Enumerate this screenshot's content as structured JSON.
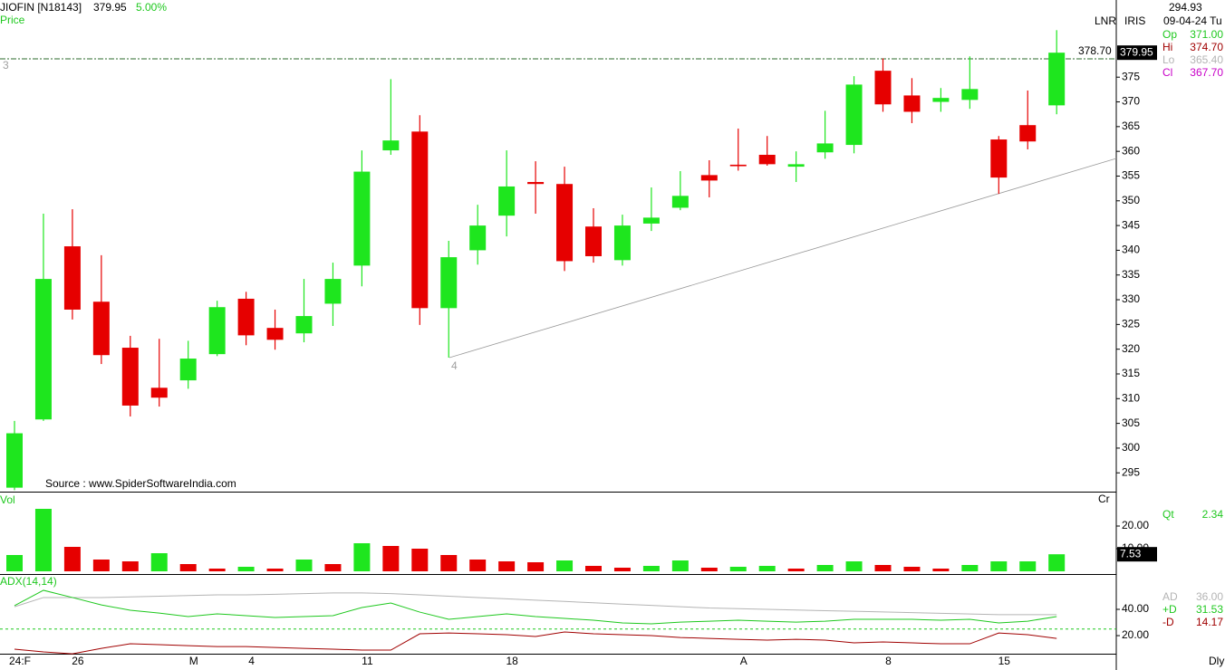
{
  "header": {
    "symbol": "JIOFIN [N18143]",
    "last": "379.95",
    "change": "5.00%",
    "panel_label": "Price",
    "cursor_value": "294.93",
    "cursor_date": "09-04-24 Tu",
    "tag1": "LNR",
    "tag2": "IRIS",
    "source": "Source : www.SpiderSoftwareIndia.com",
    "period": "Dly",
    "ohlc": [
      {
        "label": "Op",
        "value": "371.00",
        "color": "#1ec81e"
      },
      {
        "label": "Hi",
        "value": "374.70",
        "color": "#a00000"
      },
      {
        "label": "Lo",
        "value": "365.40",
        "color": "#b4b4b4"
      },
      {
        "label": "Cl",
        "value": "367.70",
        "color": "#c800c8"
      }
    ]
  },
  "chart_data": [
    {
      "type": "candlestick",
      "up_color": "#1ee61e",
      "down_color": "#e60000",
      "categories": [
        "24:F",
        null,
        "26",
        null,
        null,
        null,
        "M",
        null,
        "4",
        null,
        null,
        null,
        "11",
        null,
        null,
        null,
        null,
        "18",
        null,
        null,
        null,
        null,
        null,
        null,
        null,
        "A",
        null,
        null,
        null,
        null,
        "8",
        null,
        null,
        null,
        "15",
        null,
        null
      ],
      "open": [
        292,
        305.8,
        340.8,
        329.6,
        320.3,
        312.2,
        313.7,
        319,
        330.2,
        324.3,
        323.2,
        329.2,
        336.9,
        360.2,
        364,
        328.3,
        340,
        347,
        353.8,
        353.4,
        344.8,
        338,
        345.4,
        348.6,
        355.2,
        357.3,
        359.3,
        356.9,
        359.8,
        361.3,
        376.3,
        371.3,
        370,
        370.4,
        362.4,
        365.3,
        369.3
      ],
      "high": [
        305.5,
        347.4,
        348.3,
        339,
        322.7,
        322.1,
        321.7,
        329.8,
        331.6,
        328,
        334.2,
        337.5,
        360.2,
        374.6,
        367.3,
        341.9,
        349.2,
        360.2,
        358,
        356.9,
        348.5,
        347.2,
        352.7,
        356,
        358.2,
        364.6,
        363.1,
        360,
        368.2,
        375.2,
        378.8,
        374.8,
        372.8,
        379.2,
        363.1,
        372.3,
        384.5
      ],
      "low": [
        291.5,
        305.5,
        326,
        317,
        306.4,
        308.4,
        312,
        318.6,
        320.8,
        319.9,
        321.4,
        324.7,
        332.7,
        359.3,
        324.9,
        318.3,
        337.1,
        342.8,
        347.4,
        335.8,
        337.5,
        336.9,
        343.9,
        348.1,
        350.7,
        356.1,
        357.1,
        353.8,
        358.5,
        359.6,
        368,
        365.7,
        368,
        368.6,
        351.4,
        360.4,
        367.5
      ],
      "close": [
        303,
        334.2,
        328,
        318.8,
        308.6,
        310.2,
        318.1,
        328.5,
        322.8,
        321.9,
        326.7,
        334.2,
        355.9,
        362.2,
        328.3,
        338.6,
        345,
        352.9,
        353.4,
        337.8,
        338.8,
        345,
        346.6,
        351,
        354.1,
        357,
        357.4,
        357.4,
        361.6,
        373.5,
        369.5,
        368,
        370.8,
        372.6,
        354.7,
        362,
        379.95
      ],
      "ylim": [
        291.2,
        390.6
      ],
      "yticks": [
        295,
        300,
        305,
        310,
        315,
        320,
        325,
        330,
        335,
        340,
        345,
        350,
        355,
        360,
        365,
        370,
        375
      ],
      "reference_line": {
        "value": 378.7,
        "label": "378.70"
      },
      "annotations": [
        "3",
        "4"
      ]
    },
    {
      "type": "bar",
      "label": "Vol",
      "unit": "Cr",
      "values": [
        7.2,
        27.6,
        10.8,
        5.2,
        4.4,
        8,
        3.2,
        1.2,
        2,
        1.2,
        5.2,
        3.2,
        12.4,
        11.2,
        10,
        7.2,
        5.2,
        4.4,
        4,
        4.8,
        2.4,
        1.6,
        2.4,
        4.8,
        1.6,
        2,
        2.4,
        1.2,
        2.8,
        4.4,
        2.8,
        2,
        1.2,
        2.8,
        4.4,
        4.4,
        7.53
      ],
      "value_labels": [
        null,
        null,
        null,
        null,
        null,
        null,
        null,
        null,
        null,
        null,
        null,
        null,
        null,
        null,
        null,
        null,
        null,
        null,
        null,
        null,
        null,
        null,
        null,
        null,
        null,
        null,
        null,
        null,
        null,
        null,
        null,
        null,
        null,
        null,
        null,
        null,
        "7.53"
      ],
      "colors": [
        "#1ee61e",
        "#1ee61e",
        "#e60000",
        "#e60000",
        "#e60000",
        "#1ee61e",
        "#e60000",
        "#e60000",
        "#1ee61e",
        "#e60000",
        "#1ee61e",
        "#e60000",
        "#1ee61e",
        "#e60000",
        "#e60000",
        "#e60000",
        "#e60000",
        "#e60000",
        "#e60000",
        "#1ee61e",
        "#e60000",
        "#e60000",
        "#1ee61e",
        "#1ee61e",
        "#e60000",
        "#1ee61e",
        "#1ee61e",
        "#e60000",
        "#1ee61e",
        "#1ee61e",
        "#e60000",
        "#e60000",
        "#e60000",
        "#1ee61e",
        "#1ee61e",
        "#1ee61e",
        "#1ee61e"
      ],
      "ylim": [
        -0.8,
        34.4
      ],
      "yticks": [
        {
          "value": 10,
          "label": "10.00"
        },
        {
          "value": 20,
          "label": "20.00"
        }
      ],
      "readout": {
        "label": "Qt",
        "value": "2.34"
      }
    },
    {
      "type": "line",
      "title": "ADX(14,14)",
      "ylim": [
        -3.4,
        65.5
      ],
      "yticks": [
        {
          "value": 20,
          "label": "20.00"
        },
        {
          "value": 40,
          "label": "40.00"
        }
      ],
      "threshold": 25,
      "series": [
        {
          "name": "AD",
          "color": "#b4b4b4",
          "readout": "36.00",
          "values": [
            42,
            49,
            49,
            49,
            49.5,
            50,
            50.5,
            51,
            51,
            51.5,
            52,
            52.5,
            52.5,
            52,
            51,
            50,
            49,
            48,
            47,
            46,
            45,
            44,
            43,
            42,
            41,
            40.5,
            40,
            39.5,
            39,
            38.5,
            38,
            37.5,
            37,
            36.5,
            36,
            36,
            36
          ]
        },
        {
          "name": "+D",
          "color": "#1ec81e",
          "readout": "31.53",
          "values": [
            42.8,
            54.5,
            49,
            43.4,
            39.3,
            37.2,
            34.5,
            36.6,
            35.2,
            33.8,
            34.5,
            35.2,
            41.4,
            44.8,
            37.9,
            32.4,
            34.5,
            36.6,
            34.5,
            33.1,
            31.7,
            29.7,
            29,
            30.3,
            31,
            31.7,
            31,
            30.3,
            31,
            32.4,
            32.4,
            32.4,
            31.7,
            32.4,
            29.7,
            31,
            34.5
          ]
        },
        {
          "name": "-D",
          "color": "#a00000",
          "readout": "14.17",
          "values": [
            9.7,
            7.6,
            6.2,
            10.3,
            13.8,
            13.1,
            12.4,
            11.7,
            11.7,
            11,
            10.3,
            9.7,
            9,
            9,
            21.4,
            22,
            21.4,
            20.7,
            19.3,
            22.8,
            21.4,
            20.7,
            20,
            18.6,
            17.9,
            17.2,
            16.6,
            17.2,
            16.6,
            14.5,
            15.2,
            14.5,
            13.8,
            13.8,
            22,
            20.7,
            17.9
          ]
        }
      ]
    }
  ]
}
